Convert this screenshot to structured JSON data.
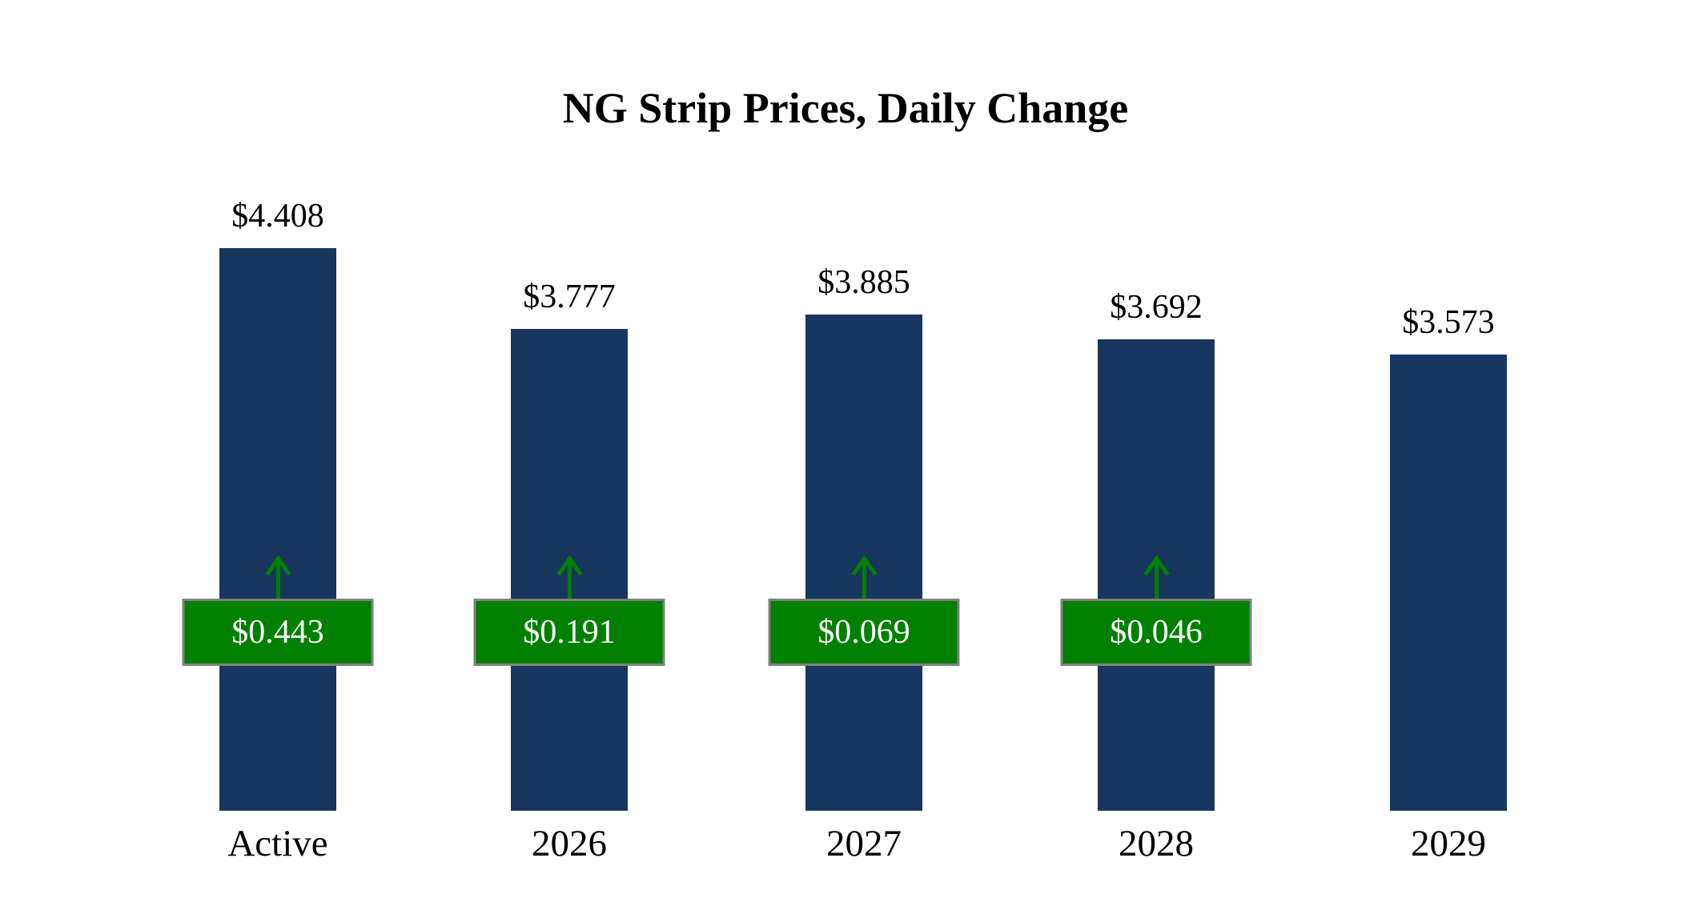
{
  "chart_data": {
    "type": "bar",
    "title": "NG Strip Prices, Daily Change",
    "categories": [
      "Active",
      "2026",
      "2027",
      "2028",
      "2029"
    ],
    "values": [
      4.408,
      3.777,
      3.885,
      3.692,
      3.573
    ],
    "value_labels": [
      "$4.408",
      "$3.777",
      "$3.885",
      "$3.692",
      "$3.573"
    ],
    "changes": [
      0.443,
      0.191,
      0.069,
      0.046,
      null
    ],
    "change_labels": [
      "$0.443",
      "$0.191",
      "$0.069",
      "$0.046",
      null
    ],
    "change_direction": "up",
    "xlabel": "",
    "ylabel": "",
    "ylim": [
      0,
      4.408
    ],
    "grid": false,
    "legend": false,
    "bar_color": "#17375E",
    "change_badge_color": "#008000",
    "change_badge_border_color": "#808080",
    "change_text_color": "#FFFFFF",
    "arrow_color": "#008000"
  }
}
